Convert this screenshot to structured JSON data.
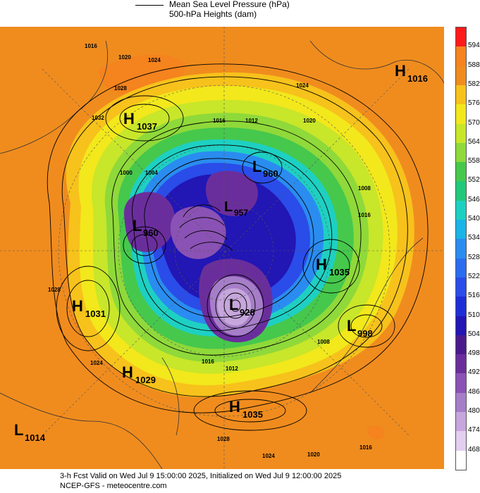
{
  "legend": {
    "line_label": "Mean Sea Level Pressure (hPa)",
    "fill_label": "500-hPa Heights (dam)"
  },
  "colorbar": {
    "levels": [
      "594",
      "588",
      "582",
      "576",
      "570",
      "564",
      "558",
      "552",
      "546",
      "540",
      "534",
      "528",
      "522",
      "516",
      "510",
      "504",
      "498",
      "492",
      "486",
      "480",
      "474",
      "468"
    ],
    "colors": [
      "#ff1a1a",
      "#f5831e",
      "#f08c1e",
      "#f7c21b",
      "#f2e81c",
      "#c8e62a",
      "#8fd93a",
      "#46c84c",
      "#22c87a",
      "#1ed0c2",
      "#1ab4e6",
      "#2a8cf0",
      "#2a6cf0",
      "#2a4ce8",
      "#1e2ed6",
      "#2216b4",
      "#4a1a8c",
      "#6a2e9c",
      "#8a52b4",
      "#a67ec8",
      "#c6a6dc",
      "#e2cef0",
      "#ffffff"
    ]
  },
  "pressure_centers": [
    {
      "type": "H",
      "value": "1016"
    },
    {
      "type": "H",
      "value": "1037"
    },
    {
      "type": "L",
      "value": "960"
    },
    {
      "type": "L",
      "value": "960"
    },
    {
      "type": "L",
      "value": "957"
    },
    {
      "type": "H",
      "value": "1035"
    },
    {
      "type": "H",
      "value": "1031"
    },
    {
      "type": "L",
      "value": "928"
    },
    {
      "type": "L",
      "value": "998"
    },
    {
      "type": "H",
      "value": "1029"
    },
    {
      "type": "H",
      "value": "1035"
    },
    {
      "type": "L",
      "value": "1014"
    }
  ],
  "isobar_labels": [
    "1016",
    "1020",
    "1024",
    "1028",
    "1032",
    "1024",
    "1016",
    "1012",
    "1000",
    "1004",
    "1008",
    "1020",
    "1024",
    "1028",
    "1016",
    "1012",
    "1008",
    "1020",
    "1016",
    "1024",
    "1028",
    "1016"
  ],
  "footer": {
    "line1": "3-h Fcst Valid on Wed Jul  9 15:00:00 2025, Initialized on Wed Jul  9 12:00:00 2025",
    "line2": "NCEP-GFS  - meteocentre.com"
  }
}
